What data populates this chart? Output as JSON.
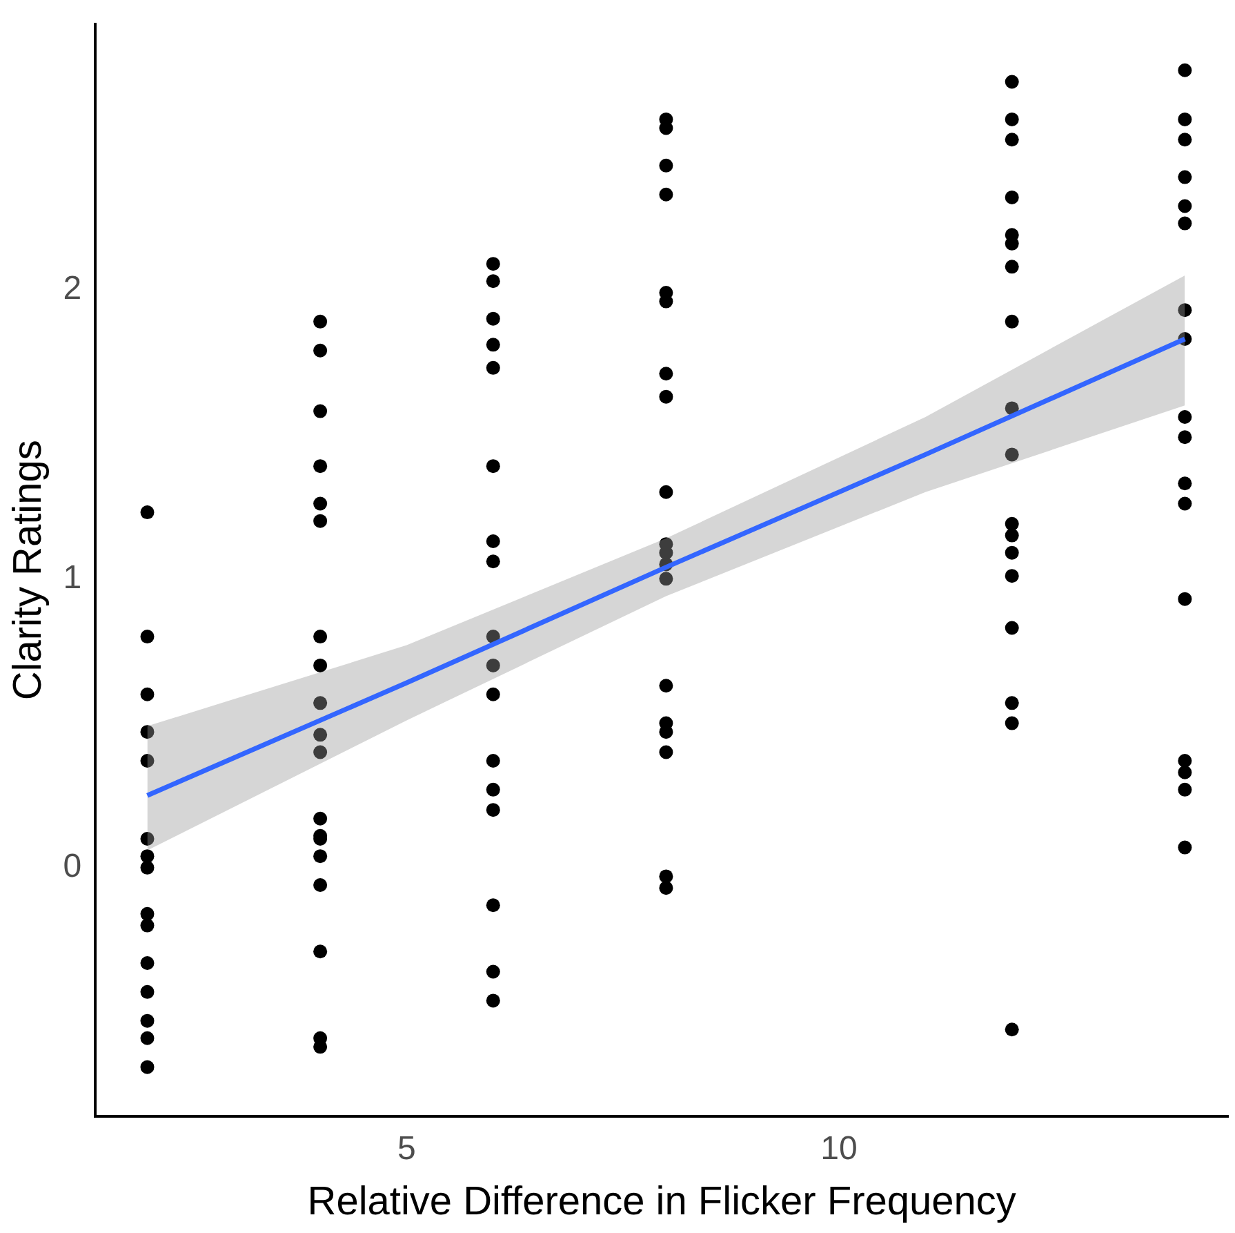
{
  "chart_data": {
    "type": "scatter",
    "xlabel": "Relative Difference in Flicker Frequency",
    "ylabel": "Clarity Ratings",
    "xlim": [
      1.4,
      14.5
    ],
    "xticks": [
      5,
      10
    ],
    "ylim": [
      -0.86,
      2.92
    ],
    "yticks": [
      0,
      1,
      2
    ],
    "grid": false,
    "series": [
      {
        "color": "#000000",
        "marker": "circle",
        "x": [
          2,
          2,
          2,
          2,
          2,
          2,
          2,
          2,
          2,
          2,
          2,
          2,
          2,
          2,
          2,
          4,
          4,
          4,
          4,
          4,
          4,
          4,
          4,
          4,
          4,
          4,
          4,
          4,
          4,
          4,
          4,
          4,
          4,
          4,
          6,
          6,
          6,
          6,
          6,
          6,
          6,
          6,
          6,
          6,
          6,
          6,
          6,
          6,
          6,
          6,
          6,
          8,
          8,
          8,
          8,
          8,
          8,
          8,
          8,
          8,
          8,
          8,
          8,
          8,
          8,
          8,
          8,
          8,
          8,
          8,
          12,
          12,
          12,
          12,
          12,
          12,
          12,
          12,
          12,
          12,
          12,
          12,
          12,
          12,
          12,
          12,
          12,
          12,
          14,
          14,
          14,
          14,
          14,
          14,
          14,
          14,
          14,
          14,
          14,
          14,
          14,
          14,
          14,
          14,
          14
        ],
        "values": [
          1.23,
          0.8,
          0.6,
          0.47,
          0.37,
          0.1,
          0.04,
          0.0,
          -0.16,
          -0.2,
          -0.33,
          -0.43,
          -0.53,
          -0.59,
          -0.69,
          1.89,
          1.79,
          1.58,
          1.39,
          1.26,
          1.2,
          0.8,
          0.7,
          0.57,
          0.46,
          0.4,
          0.17,
          0.11,
          0.1,
          0.04,
          -0.06,
          -0.29,
          -0.59,
          -0.62,
          2.09,
          2.03,
          1.9,
          1.81,
          1.73,
          1.39,
          1.13,
          1.06,
          0.8,
          0.7,
          0.6,
          0.37,
          0.27,
          0.2,
          -0.13,
          -0.36,
          -0.46,
          2.59,
          2.56,
          2.43,
          2.33,
          1.99,
          1.96,
          1.71,
          1.63,
          1.3,
          1.12,
          1.09,
          1.05,
          1.0,
          0.63,
          0.5,
          0.47,
          0.4,
          -0.03,
          -0.07,
          2.72,
          2.59,
          2.52,
          2.32,
          2.19,
          2.16,
          2.08,
          1.89,
          1.59,
          1.43,
          1.19,
          1.15,
          1.09,
          1.01,
          0.83,
          0.57,
          0.5,
          -0.56,
          2.76,
          2.59,
          2.52,
          2.39,
          2.29,
          2.23,
          1.93,
          1.83,
          1.56,
          1.49,
          1.33,
          1.26,
          0.93,
          0.37,
          0.33,
          0.27,
          0.07
        ]
      },
      {
        "type": "line",
        "color": "#3366ff",
        "marker": "none",
        "x": [
          2,
          5,
          8,
          11,
          14
        ],
        "values": [
          0.25,
          0.64,
          1.04,
          1.43,
          1.83
        ],
        "lower": [
          0.06,
          0.51,
          0.94,
          1.3,
          1.6
        ],
        "upper": [
          0.49,
          0.77,
          1.14,
          1.56,
          2.05
        ]
      }
    ]
  }
}
